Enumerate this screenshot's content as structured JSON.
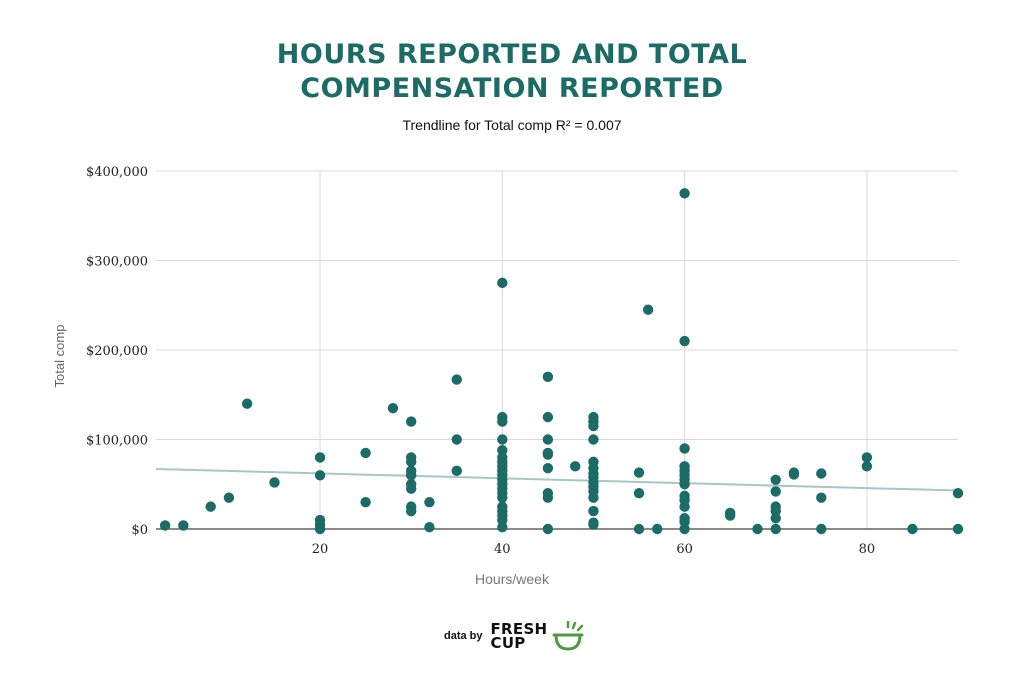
{
  "chart_data": {
    "type": "scatter",
    "title_line1": "HOURS REPORTED AND TOTAL",
    "title_line2": "COMPENSATION REPORTED",
    "subtitle": "Trendline for Total comp R² = 0.007",
    "xlabel": "Hours/week",
    "ylabel": "Total comp",
    "xlim": [
      2,
      90
    ],
    "ylim": [
      0,
      400000
    ],
    "x_ticks": [
      20,
      40,
      60,
      80
    ],
    "y_ticks": [
      0,
      100000,
      200000,
      300000,
      400000
    ],
    "y_tick_labels": [
      "$0",
      "$100,000",
      "$200,000",
      "$300,000",
      "$400,000"
    ],
    "grid": true,
    "colors": {
      "points": "#1b6b66",
      "trendline": "#a6c8c5",
      "grid": "#d9d9d9",
      "title": "#1b6b66"
    },
    "trendline": {
      "x": [
        2,
        90
      ],
      "y": [
        67000,
        43000
      ]
    },
    "points": [
      {
        "x": 3,
        "y": 4000
      },
      {
        "x": 5,
        "y": 4000
      },
      {
        "x": 8,
        "y": 25000
      },
      {
        "x": 10,
        "y": 35000
      },
      {
        "x": 12,
        "y": 140000
      },
      {
        "x": 15,
        "y": 52000
      },
      {
        "x": 20,
        "y": 80000
      },
      {
        "x": 20,
        "y": 60000
      },
      {
        "x": 20,
        "y": 10000
      },
      {
        "x": 20,
        "y": 5000
      },
      {
        "x": 20,
        "y": 0
      },
      {
        "x": 25,
        "y": 85000
      },
      {
        "x": 25,
        "y": 30000
      },
      {
        "x": 28,
        "y": 135000
      },
      {
        "x": 30,
        "y": 120000
      },
      {
        "x": 30,
        "y": 80000
      },
      {
        "x": 30,
        "y": 75000
      },
      {
        "x": 30,
        "y": 65000
      },
      {
        "x": 30,
        "y": 60000
      },
      {
        "x": 30,
        "y": 50000
      },
      {
        "x": 30,
        "y": 45000
      },
      {
        "x": 30,
        "y": 25000
      },
      {
        "x": 30,
        "y": 20000
      },
      {
        "x": 32,
        "y": 30000
      },
      {
        "x": 32,
        "y": 2000
      },
      {
        "x": 35,
        "y": 167000
      },
      {
        "x": 35,
        "y": 100000
      },
      {
        "x": 35,
        "y": 65000
      },
      {
        "x": 40,
        "y": 275000
      },
      {
        "x": 40,
        "y": 125000
      },
      {
        "x": 40,
        "y": 120000
      },
      {
        "x": 40,
        "y": 100000
      },
      {
        "x": 40,
        "y": 88000
      },
      {
        "x": 40,
        "y": 80000
      },
      {
        "x": 40,
        "y": 75000
      },
      {
        "x": 40,
        "y": 70000
      },
      {
        "x": 40,
        "y": 65000
      },
      {
        "x": 40,
        "y": 60000
      },
      {
        "x": 40,
        "y": 55000
      },
      {
        "x": 40,
        "y": 50000
      },
      {
        "x": 40,
        "y": 45000
      },
      {
        "x": 40,
        "y": 40000
      },
      {
        "x": 40,
        "y": 35000
      },
      {
        "x": 40,
        "y": 25000
      },
      {
        "x": 40,
        "y": 20000
      },
      {
        "x": 40,
        "y": 15000
      },
      {
        "x": 40,
        "y": 10000
      },
      {
        "x": 40,
        "y": 2000
      },
      {
        "x": 45,
        "y": 170000
      },
      {
        "x": 45,
        "y": 125000
      },
      {
        "x": 45,
        "y": 100000
      },
      {
        "x": 45,
        "y": 85000
      },
      {
        "x": 45,
        "y": 83000
      },
      {
        "x": 45,
        "y": 68000
      },
      {
        "x": 45,
        "y": 40000
      },
      {
        "x": 45,
        "y": 35000
      },
      {
        "x": 45,
        "y": 0
      },
      {
        "x": 48,
        "y": 70000
      },
      {
        "x": 50,
        "y": 125000
      },
      {
        "x": 50,
        "y": 120000
      },
      {
        "x": 50,
        "y": 115000
      },
      {
        "x": 50,
        "y": 100000
      },
      {
        "x": 50,
        "y": 75000
      },
      {
        "x": 50,
        "y": 68000
      },
      {
        "x": 50,
        "y": 62000
      },
      {
        "x": 50,
        "y": 58000
      },
      {
        "x": 50,
        "y": 52000
      },
      {
        "x": 50,
        "y": 47000
      },
      {
        "x": 50,
        "y": 42000
      },
      {
        "x": 50,
        "y": 35000
      },
      {
        "x": 50,
        "y": 20000
      },
      {
        "x": 50,
        "y": 7000
      },
      {
        "x": 50,
        "y": 5000
      },
      {
        "x": 55,
        "y": 63000
      },
      {
        "x": 55,
        "y": 40000
      },
      {
        "x": 55,
        "y": 0
      },
      {
        "x": 56,
        "y": 245000
      },
      {
        "x": 57,
        "y": 0
      },
      {
        "x": 60,
        "y": 375000
      },
      {
        "x": 60,
        "y": 210000
      },
      {
        "x": 60,
        "y": 90000
      },
      {
        "x": 60,
        "y": 70000
      },
      {
        "x": 60,
        "y": 65000
      },
      {
        "x": 60,
        "y": 60000
      },
      {
        "x": 60,
        "y": 55000
      },
      {
        "x": 60,
        "y": 50000
      },
      {
        "x": 60,
        "y": 37000
      },
      {
        "x": 60,
        "y": 32000
      },
      {
        "x": 60,
        "y": 25000
      },
      {
        "x": 60,
        "y": 12000
      },
      {
        "x": 60,
        "y": 8000
      },
      {
        "x": 60,
        "y": 0
      },
      {
        "x": 65,
        "y": 18000
      },
      {
        "x": 65,
        "y": 15000
      },
      {
        "x": 68,
        "y": 0
      },
      {
        "x": 70,
        "y": 55000
      },
      {
        "x": 70,
        "y": 42000
      },
      {
        "x": 70,
        "y": 25000
      },
      {
        "x": 70,
        "y": 20000
      },
      {
        "x": 70,
        "y": 12000
      },
      {
        "x": 70,
        "y": 0
      },
      {
        "x": 72,
        "y": 63000
      },
      {
        "x": 72,
        "y": 61000
      },
      {
        "x": 75,
        "y": 62000
      },
      {
        "x": 75,
        "y": 35000
      },
      {
        "x": 75,
        "y": 0
      },
      {
        "x": 80,
        "y": 80000
      },
      {
        "x": 80,
        "y": 70000
      },
      {
        "x": 85,
        "y": 0
      },
      {
        "x": 90,
        "y": 40000
      },
      {
        "x": 90,
        "y": 0
      }
    ]
  },
  "footer": {
    "text": "data by",
    "logo_line1": "FRESH",
    "logo_line2": "CUP"
  }
}
